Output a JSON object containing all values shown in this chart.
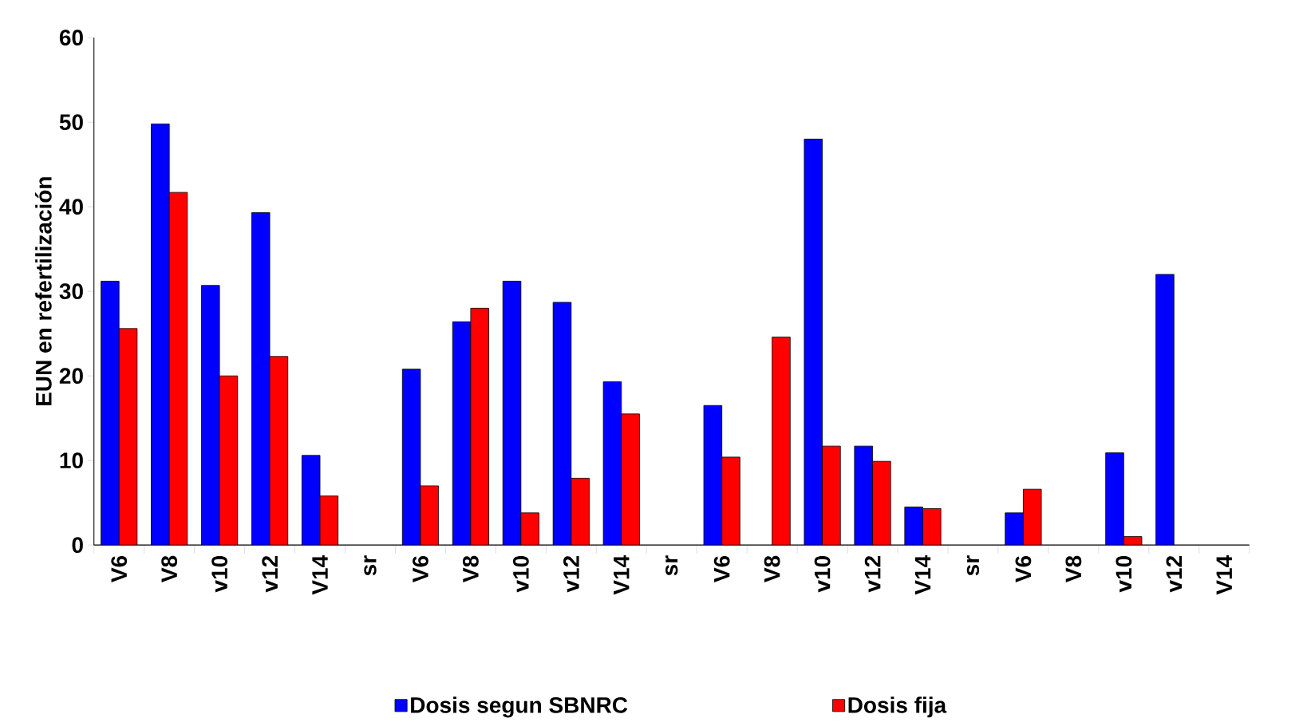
{
  "chart_data": {
    "type": "bar",
    "ylabel": "EUN en refertilización",
    "categories": [
      "V6",
      "V8",
      "v10",
      "v12",
      "V14",
      "sr",
      "V6",
      "V8",
      "v10",
      "v12",
      "V14",
      "sr",
      "V6",
      "V8",
      "v10",
      "v12",
      "V14",
      "sr",
      "V6",
      "V8",
      "v10",
      "v12",
      "V14"
    ],
    "series": [
      {
        "name": "Dosis segun SBNRC",
        "color": "#0000ff",
        "values": [
          31.2,
          49.8,
          30.7,
          39.3,
          10.6,
          null,
          20.8,
          26.4,
          31.2,
          28.7,
          19.3,
          null,
          16.5,
          null,
          48.0,
          11.7,
          4.5,
          null,
          3.8,
          null,
          10.9,
          32.0,
          null
        ]
      },
      {
        "name": "Dosis fija",
        "color": "#ff0000",
        "values": [
          25.6,
          41.7,
          20.0,
          22.3,
          5.8,
          null,
          7.0,
          28.0,
          3.8,
          7.9,
          15.5,
          null,
          10.4,
          24.6,
          11.7,
          9.9,
          4.3,
          null,
          6.6,
          null,
          1.0,
          null,
          null
        ]
      }
    ],
    "ylim": [
      0,
      60
    ],
    "yticks": [
      0,
      10,
      20,
      30,
      40,
      50,
      60
    ],
    "legend": "bottom"
  }
}
